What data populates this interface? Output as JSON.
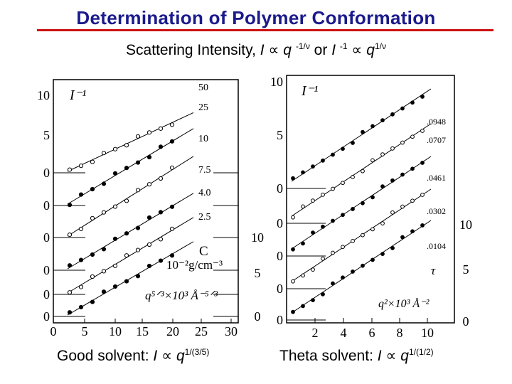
{
  "slide": {
    "title": "Determination of Polymer Conformation",
    "subtitle": {
      "lead": "Scattering Intensity, ",
      "var_i": "I",
      "prop": "∝",
      "var_q": "q",
      "exp1": "-1/ν",
      "mid": " or ",
      "var_i2": "I",
      "exp2": "-1",
      "prop2": "∝",
      "var_q2": "q",
      "exp3": "1/ν"
    },
    "caption_left": {
      "lead": "Good solvent:  ",
      "var_i": "I",
      "prop": "∝",
      "var_q": "q",
      "exp": "1/(3/5)"
    },
    "caption_right": {
      "lead": "Theta solvent:  ",
      "var_i": "I",
      "prop": "∝",
      "var_q": "q",
      "exp": "1/(1/2)"
    }
  },
  "chart_data": [
    {
      "type": "scatter",
      "y_axis_label": "I⁻¹",
      "y_ticks": [
        "10",
        "5",
        "0",
        "0",
        "0",
        "0",
        "0",
        "0"
      ],
      "x_ticks": [
        "0",
        "5",
        "10",
        "15",
        "20",
        "25",
        "30"
      ],
      "right_ticks": [
        "10",
        "5",
        "0"
      ],
      "legend_header": "C",
      "legend_unit": "10⁻²g/cm⁻³",
      "x_axis_label": "q⁵ᐟ³×10³ Å⁻⁵ᐟ³",
      "series": [
        {
          "name": "50"
        },
        {
          "name": "25"
        },
        {
          "name": "10"
        },
        {
          "name": "7.5"
        },
        {
          "name": "4.0"
        },
        {
          "name": "2.5"
        }
      ]
    },
    {
      "type": "scatter",
      "y_axis_label": "I⁻¹",
      "y_ticks": [
        "10",
        "5",
        "0",
        "0",
        "0",
        "0",
        "0"
      ],
      "x_ticks": [
        "2",
        "4",
        "6",
        "8",
        "10"
      ],
      "right_ticks": [
        "10",
        "5",
        "0"
      ],
      "legend_header": "τ",
      "x_axis_label": "q²×10³ Å⁻²",
      "series": [
        {
          "name": ".0948"
        },
        {
          "name": ".0707"
        },
        {
          "name": ".0461"
        },
        {
          "name": ".0302"
        },
        {
          "name": ".0104"
        }
      ]
    }
  ]
}
